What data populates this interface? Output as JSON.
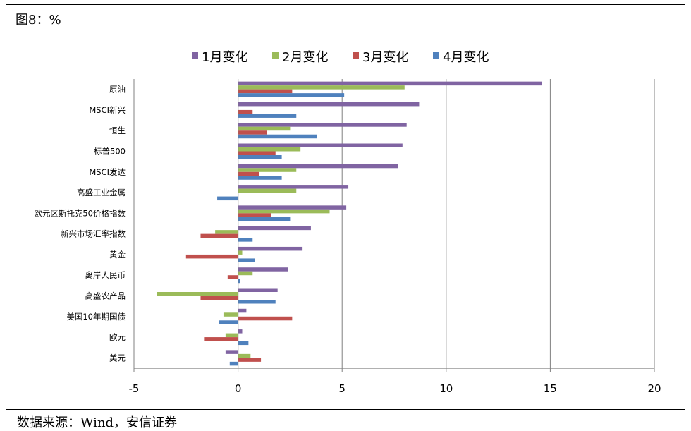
{
  "figure": {
    "title": "图8：%",
    "source": "数据来源：Wind，安信证券"
  },
  "chart_data": {
    "type": "bar",
    "orientation": "horizontal",
    "categories": [
      "原油",
      "MSCI新兴",
      "恒生",
      "标普500",
      "MSCI发达",
      "高盛工业金属",
      "欧元区斯托克50价格指数",
      "新兴市场汇率指数",
      "黄金",
      "离岸人民币",
      "高盛农产品",
      "美国10年期国债",
      "欧元",
      "美元"
    ],
    "series": [
      {
        "name": "1月变化",
        "color": "#8064A2",
        "values": [
          14.6,
          8.7,
          8.1,
          7.9,
          7.7,
          5.3,
          5.2,
          3.5,
          3.1,
          2.4,
          1.9,
          0.4,
          0.2,
          -0.6
        ]
      },
      {
        "name": "2月变化",
        "color": "#9BBB59",
        "values": [
          8.0,
          0.0,
          2.5,
          3.0,
          2.8,
          2.8,
          4.4,
          -1.1,
          0.2,
          0.7,
          -3.9,
          -0.7,
          -0.6,
          0.6
        ]
      },
      {
        "name": "3月变化",
        "color": "#C0504D",
        "values": [
          2.6,
          0.7,
          1.4,
          1.8,
          1.0,
          0.0,
          1.6,
          -1.8,
          -2.5,
          -0.5,
          -1.8,
          2.6,
          -1.6,
          1.1
        ]
      },
      {
        "name": "4月变化",
        "color": "#4F81BD",
        "values": [
          5.1,
          2.8,
          3.8,
          2.1,
          2.1,
          -1.0,
          2.5,
          0.7,
          0.8,
          0.1,
          1.8,
          -0.9,
          0.5,
          -0.4
        ]
      }
    ],
    "xlim": [
      -5,
      20
    ],
    "xticks": [
      -5,
      0,
      5,
      10,
      15,
      20
    ],
    "grid": true,
    "legend": "top"
  }
}
